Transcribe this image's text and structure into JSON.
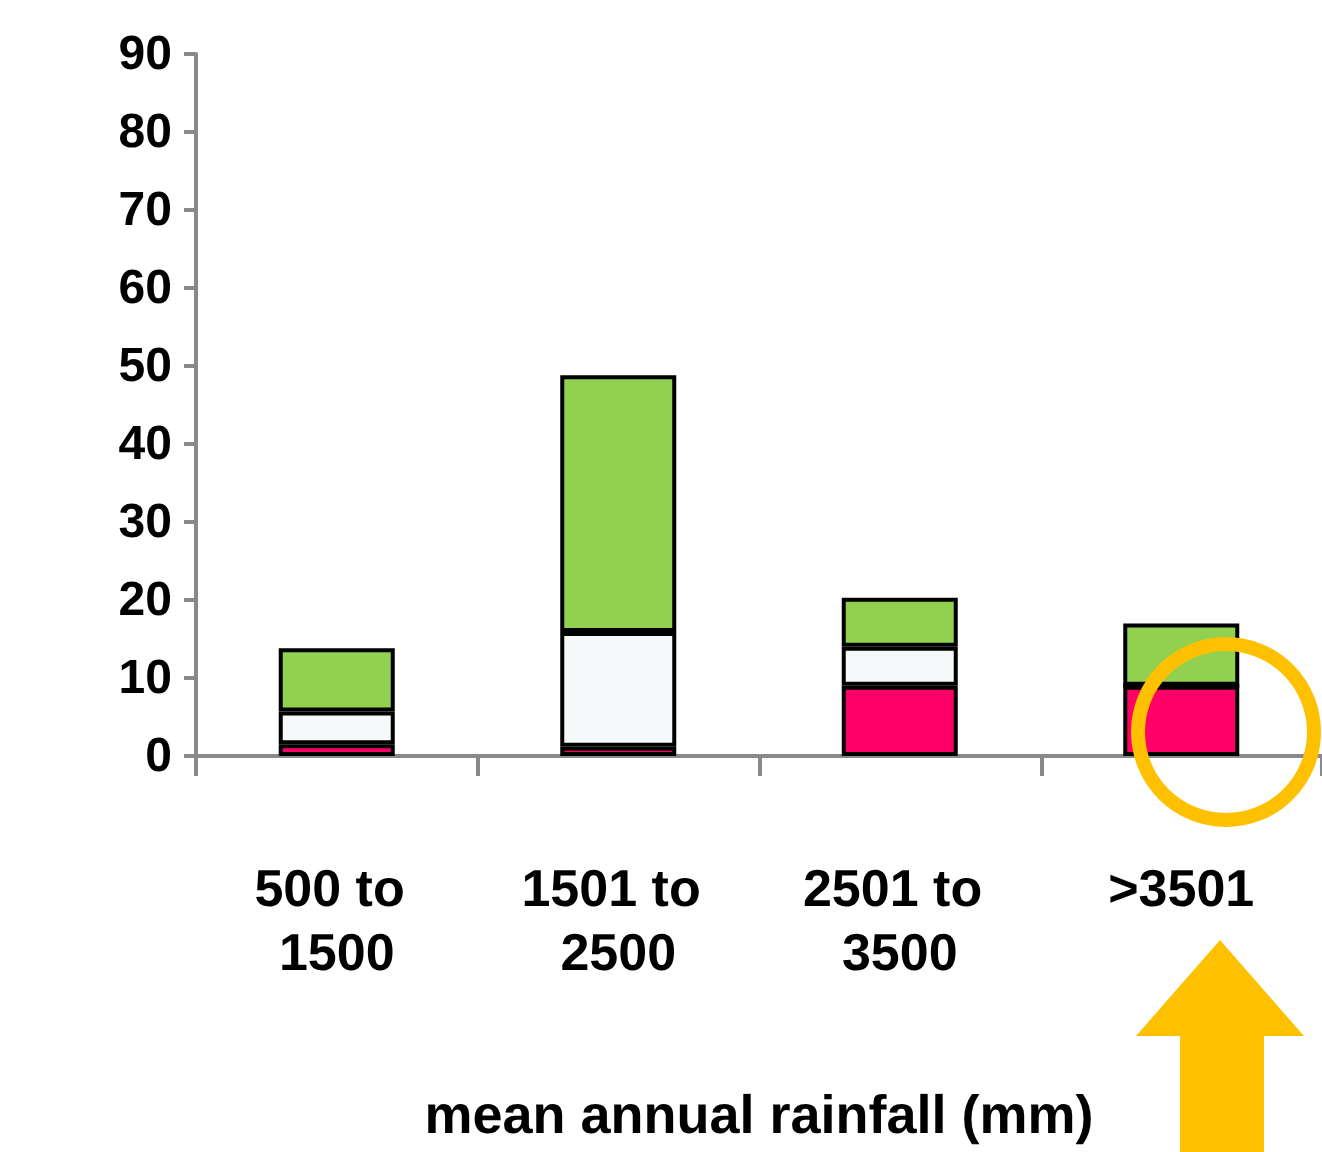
{
  "chart_data": {
    "type": "bar",
    "stacked": true,
    "xlabel": "mean annual rainfall (mm)",
    "categories": [
      "500 to 1500",
      "1501 to 2500",
      "2501 to 3500",
      ">3501"
    ],
    "series": [
      {
        "color": "#ff0066",
        "values": [
          1.5,
          1.2,
          9.0,
          9.0
        ]
      },
      {
        "color": "#f5f9fa",
        "values": [
          4.2,
          14.7,
          5.0,
          0
        ]
      },
      {
        "color": "#92d050",
        "values": [
          8.1,
          32.9,
          6.3,
          8.0
        ]
      }
    ],
    "ylim": [
      0,
      90
    ],
    "yticks": [
      0,
      10,
      20,
      30,
      40,
      50,
      60,
      70,
      80,
      90
    ],
    "grid": false
  }
}
